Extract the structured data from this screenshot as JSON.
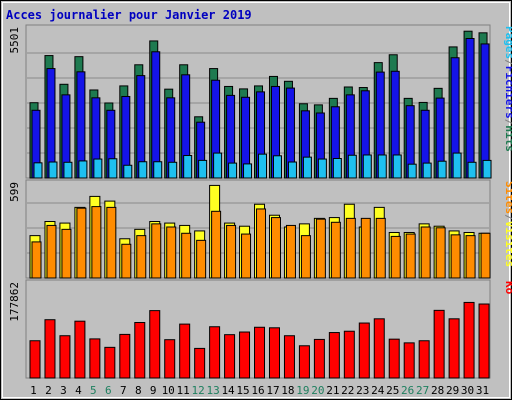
{
  "title": "Acces journalier pour Janvier 2019",
  "colors": {
    "background": "#c0c0c0",
    "frame": "#808080",
    "hits": "#1e7a50",
    "fichiers": "#1414e8",
    "pages": "#1ec0f0",
    "visites": "#ffff22",
    "sites": "#ff8c00",
    "ko": "#ff0000",
    "title_text": "#0000c0",
    "weekend_text": "#208060"
  },
  "chart_data": [
    {
      "type": "bar",
      "panel": "hits-fichiers-pages",
      "ymax_label": "5501",
      "ylim": [
        0,
        5501
      ],
      "grid": true,
      "legend": [
        "Pages",
        "Fichiers",
        "Hits"
      ],
      "categories": [
        "1",
        "2",
        "3",
        "4",
        "5",
        "6",
        "7",
        "8",
        "9",
        "10",
        "11",
        "12",
        "13",
        "14",
        "15",
        "16",
        "17",
        "18",
        "19",
        "20",
        "21",
        "22",
        "23",
        "24",
        "25",
        "26",
        "27",
        "28",
        "29",
        "30",
        "31"
      ],
      "series": [
        {
          "name": "Hits",
          "values": [
            2780,
            4520,
            3460,
            4480,
            3250,
            2770,
            3400,
            4180,
            5060,
            3280,
            4180,
            2260,
            4040,
            3380,
            3290,
            3400,
            3750,
            3570,
            2740,
            2700,
            2940,
            3360,
            3340,
            4260,
            4550,
            2940,
            2790,
            3310,
            4840,
            5420,
            5360
          ]
        },
        {
          "name": "Fichiers",
          "values": [
            2500,
            4040,
            3070,
            3920,
            2960,
            2500,
            3010,
            3780,
            4660,
            2960,
            3810,
            2060,
            3610,
            3050,
            2980,
            3180,
            3380,
            3320,
            2480,
            2400,
            2630,
            3070,
            3220,
            3910,
            3940,
            2670,
            2500,
            2950,
            4440,
            5150,
            4950
          ]
        },
        {
          "name": "Pages",
          "values": [
            560,
            590,
            580,
            630,
            700,
            710,
            470,
            600,
            600,
            580,
            830,
            650,
            920,
            550,
            520,
            880,
            820,
            590,
            770,
            700,
            720,
            840,
            850,
            850,
            850,
            510,
            550,
            620,
            920,
            580,
            650
          ]
        }
      ]
    },
    {
      "type": "bar",
      "panel": "visites-sites",
      "ymax_label": "599",
      "ylim": [
        0,
        599
      ],
      "grid": true,
      "legend": [
        "Sites",
        "Visites"
      ],
      "categories": [
        "1",
        "2",
        "3",
        "4",
        "5",
        "6",
        "7",
        "8",
        "9",
        "10",
        "11",
        "12",
        "13",
        "14",
        "15",
        "16",
        "17",
        "18",
        "19",
        "20",
        "21",
        "22",
        "23",
        "24",
        "25",
        "26",
        "27",
        "28",
        "29",
        "30",
        "31"
      ],
      "series": [
        {
          "name": "Visites",
          "values": [
            270,
            360,
            350,
            450,
            520,
            490,
            250,
            310,
            360,
            350,
            335,
            300,
            590,
            350,
            330,
            470,
            400,
            325,
            345,
            380,
            385,
            470,
            325,
            450,
            290,
            290,
            345,
            330,
            300,
            290,
            285
          ]
        },
        {
          "name": "Sites",
          "values": [
            230,
            335,
            310,
            445,
            455,
            450,
            215,
            270,
            345,
            325,
            285,
            240,
            425,
            335,
            280,
            440,
            385,
            335,
            270,
            375,
            355,
            380,
            380,
            380,
            265,
            280,
            325,
            320,
            275,
            270,
            285
          ]
        }
      ]
    },
    {
      "type": "bar",
      "panel": "ko",
      "ymax_label": "177862",
      "ylim": [
        0,
        177862
      ],
      "grid": false,
      "legend": [
        "Ko"
      ],
      "categories": [
        "1",
        "2",
        "3",
        "4",
        "5",
        "6",
        "7",
        "8",
        "9",
        "10",
        "11",
        "12",
        "13",
        "14",
        "15",
        "16",
        "17",
        "18",
        "19",
        "20",
        "21",
        "22",
        "23",
        "24",
        "25",
        "26",
        "27",
        "28",
        "29",
        "30",
        "31"
      ],
      "series": [
        {
          "name": "Ko",
          "values": [
            70500,
            110300,
            80000,
            107500,
            74000,
            58000,
            82500,
            105000,
            127500,
            72500,
            102000,
            56000,
            97000,
            82000,
            87000,
            96000,
            95000,
            80000,
            61000,
            73000,
            86000,
            88500,
            104000,
            112000,
            73500,
            66500,
            70500,
            128000,
            112000,
            143000,
            140000
          ]
        }
      ]
    }
  ],
  "weekend_days": [
    "5",
    "6",
    "12",
    "13",
    "19",
    "20",
    "26",
    "27"
  ]
}
